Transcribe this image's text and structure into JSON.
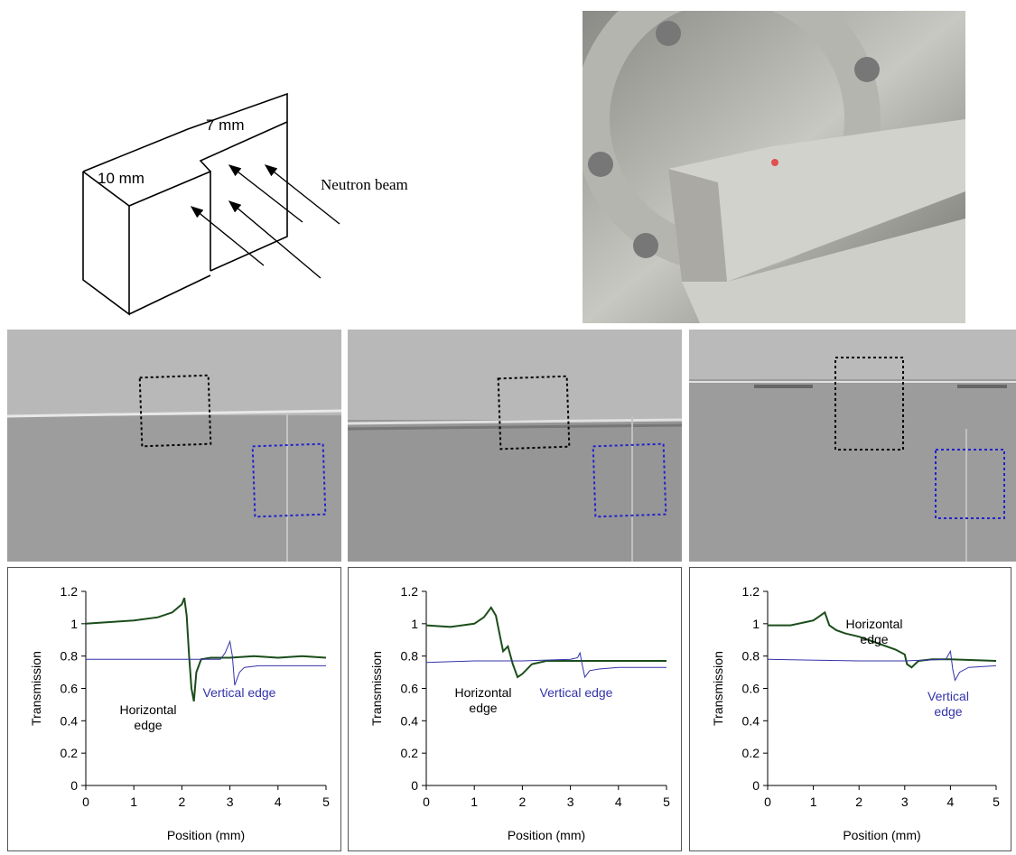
{
  "diagram": {
    "labels": [
      "10 mm",
      "7 mm",
      "Neutron beam"
    ]
  },
  "chart_data": [
    {
      "type": "line",
      "x_label": "Position (mm)",
      "y_label": "Transmission",
      "xlim": [
        0,
        5
      ],
      "xticks": [
        0,
        1,
        2,
        3,
        4,
        5
      ],
      "ylim": [
        0,
        1.2
      ],
      "yticks": [
        0,
        0.2,
        0.4,
        0.6,
        0.8,
        1,
        1.2
      ],
      "series": [
        {
          "name": "Horizontal edge",
          "color": "#1b4d1b",
          "x": [
            0,
            0.5,
            1,
            1.5,
            1.8,
            2,
            2.05,
            2.1,
            2.15,
            2.2,
            2.25,
            2.3,
            2.4,
            2.6,
            3,
            3.5,
            4,
            4.5,
            5
          ],
          "values": [
            1.0,
            1.01,
            1.02,
            1.04,
            1.07,
            1.12,
            1.16,
            1.05,
            0.8,
            0.6,
            0.52,
            0.7,
            0.78,
            0.79,
            0.79,
            0.8,
            0.79,
            0.8,
            0.79
          ]
        },
        {
          "name": "Vertical edge",
          "color": "#3333aa",
          "x": [
            0,
            1,
            2,
            2.8,
            2.9,
            3,
            3.05,
            3.1,
            3.2,
            3.3,
            3.6,
            4,
            5
          ],
          "values": [
            0.78,
            0.78,
            0.78,
            0.78,
            0.82,
            0.89,
            0.8,
            0.62,
            0.7,
            0.73,
            0.74,
            0.74,
            0.74
          ]
        }
      ]
    },
    {
      "type": "line",
      "x_label": "Position (mm)",
      "y_label": "Transmission",
      "xlim": [
        0,
        5
      ],
      "xticks": [
        0,
        1,
        2,
        3,
        4,
        5
      ],
      "ylim": [
        0,
        1.2
      ],
      "yticks": [
        0,
        0.2,
        0.4,
        0.6,
        0.8,
        1,
        1.2
      ],
      "series": [
        {
          "name": "Horizontal edge",
          "color": "#1b4d1b",
          "x": [
            0,
            0.5,
            1,
            1.2,
            1.35,
            1.45,
            1.55,
            1.6,
            1.7,
            1.8,
            1.9,
            2,
            2.2,
            2.5,
            3,
            4,
            5
          ],
          "values": [
            0.99,
            0.98,
            1.0,
            1.04,
            1.1,
            1.05,
            0.9,
            0.83,
            0.86,
            0.75,
            0.67,
            0.69,
            0.75,
            0.77,
            0.77,
            0.77,
            0.77
          ]
        },
        {
          "name": "Vertical edge",
          "color": "#3333aa",
          "x": [
            0,
            1,
            2,
            3,
            3.15,
            3.2,
            3.25,
            3.3,
            3.4,
            3.6,
            4,
            5
          ],
          "values": [
            0.76,
            0.77,
            0.77,
            0.78,
            0.79,
            0.82,
            0.74,
            0.67,
            0.71,
            0.72,
            0.73,
            0.73
          ]
        }
      ]
    },
    {
      "type": "line",
      "x_label": "Position (mm)",
      "y_label": "Transmission",
      "xlim": [
        0,
        5
      ],
      "xticks": [
        0,
        1,
        2,
        3,
        4,
        5
      ],
      "ylim": [
        0,
        1.2
      ],
      "yticks": [
        0,
        0.2,
        0.4,
        0.6,
        0.8,
        1,
        1.2
      ],
      "series": [
        {
          "name": "Horizontal edge",
          "color": "#1b4d1b",
          "x": [
            0,
            0.5,
            1,
            1.15,
            1.25,
            1.35,
            1.5,
            1.7,
            2,
            2.3,
            2.6,
            2.8,
            3,
            3.05,
            3.15,
            3.3,
            3.6,
            4,
            5
          ],
          "values": [
            0.99,
            0.99,
            1.02,
            1.05,
            1.07,
            0.99,
            0.96,
            0.94,
            0.92,
            0.89,
            0.86,
            0.84,
            0.81,
            0.75,
            0.73,
            0.77,
            0.78,
            0.78,
            0.77
          ]
        },
        {
          "name": "Vertical edge",
          "color": "#3333aa",
          "x": [
            0,
            2,
            3,
            3.9,
            4,
            4.05,
            4.1,
            4.2,
            4.4,
            5
          ],
          "values": [
            0.78,
            0.77,
            0.77,
            0.78,
            0.83,
            0.72,
            0.65,
            0.7,
            0.73,
            0.74
          ]
        }
      ]
    }
  ]
}
